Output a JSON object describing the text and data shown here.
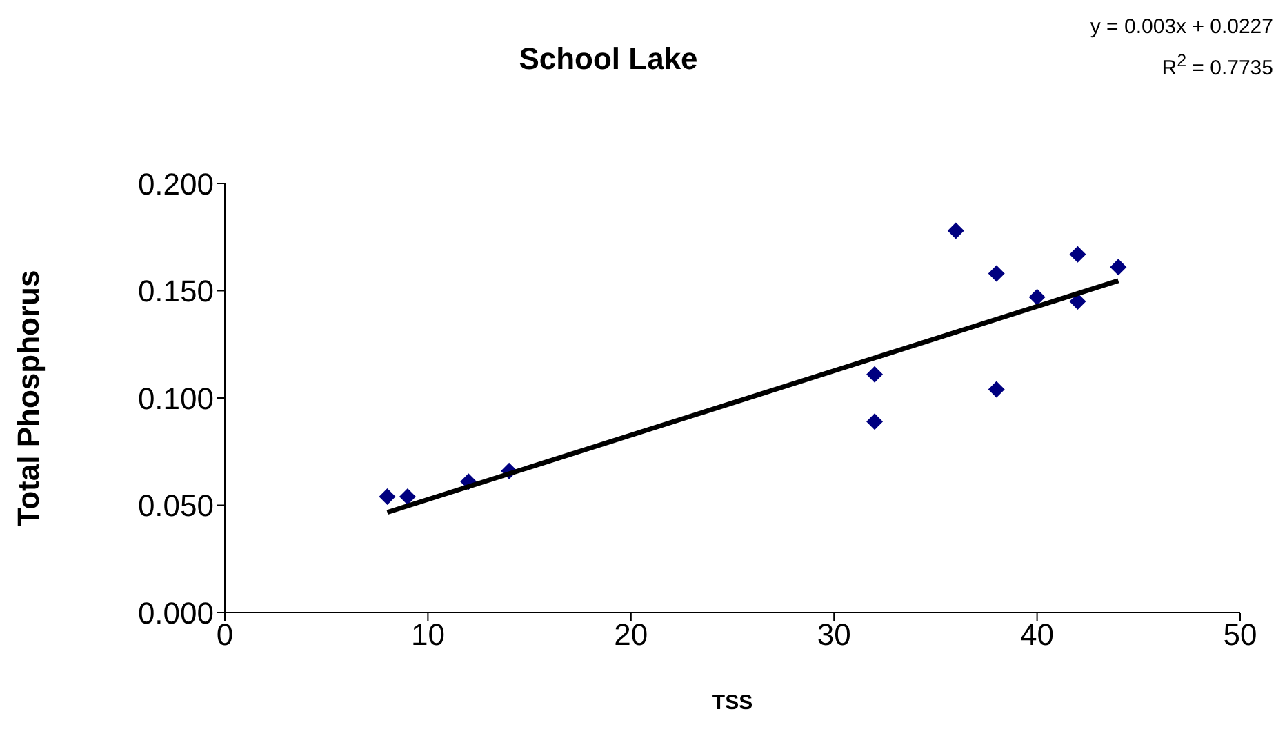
{
  "chart_data": {
    "type": "scatter",
    "title": "School Lake",
    "xlabel": "TSS",
    "ylabel": "Total Phosphorus",
    "annotations": [
      "y = 0.003x + 0.0227",
      "R$^{2}$ = 0.7735"
    ],
    "xlim": [
      0,
      50
    ],
    "xticks": [
      0,
      10,
      20,
      30,
      40,
      50
    ],
    "ylim": [
      0,
      0.2
    ],
    "yticks": [
      {
        "value": 0,
        "label": "0.000"
      },
      {
        "value": 0.05,
        "label": "0.050"
      },
      {
        "value": 0.1,
        "label": "0.100"
      },
      {
        "value": 0.15,
        "label": "0.150"
      },
      {
        "value": 0.2,
        "label": "0.200"
      }
    ],
    "grid": false,
    "series": [
      {
        "marker": "diamond",
        "color": "#000080",
        "x": [
          8,
          9,
          12,
          14,
          32,
          32,
          36,
          38,
          38,
          40,
          42,
          42,
          44
        ],
        "values": [
          0.054,
          0.054,
          0.061,
          0.066,
          0.111,
          0.089,
          0.178,
          0.158,
          0.104,
          0.147,
          0.167,
          0.145,
          0.161
        ]
      },
      {
        "type": "line",
        "marker": "none",
        "color": "#000000",
        "x": [
          8,
          44
        ],
        "values": [
          0.0467,
          0.1547
        ]
      }
    ]
  }
}
